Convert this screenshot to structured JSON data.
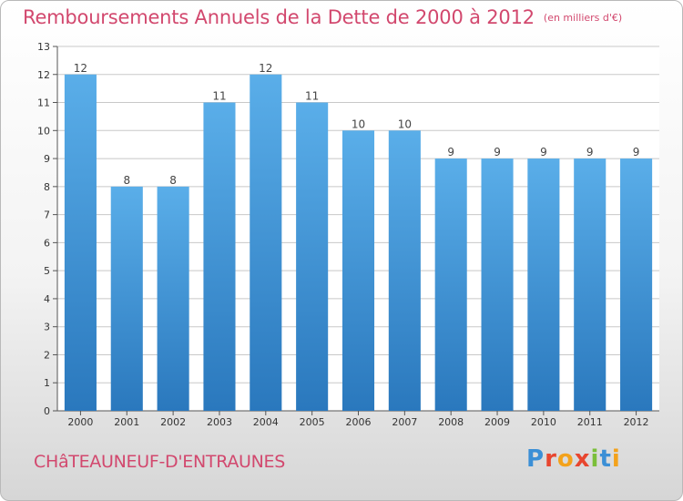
{
  "header": {
    "title": "Remboursements Annuels de la Dette de 2000 à 2012",
    "unit": "(en milliers d'€)"
  },
  "footer": {
    "place": "CHâTEAUNEUF-D'ENTRAUNES",
    "logo": "Proxiti"
  },
  "colors": {
    "bar_top": "#5aaee9",
    "bar_bottom": "#2a78bd",
    "title": "#d2486e",
    "grid": "#c8c8c8"
  },
  "chart_data": {
    "type": "bar",
    "categories": [
      "2000",
      "2001",
      "2002",
      "2003",
      "2004",
      "2005",
      "2006",
      "2007",
      "2008",
      "2009",
      "2010",
      "2011",
      "2012"
    ],
    "values": [
      12,
      8,
      8,
      11,
      12,
      11,
      10,
      10,
      9,
      9,
      9,
      9,
      9
    ],
    "title": "Remboursements Annuels de la Dette de 2000 à 2012",
    "ylim": [
      0,
      13
    ],
    "yticks": [
      0,
      1,
      2,
      3,
      4,
      5,
      6,
      7,
      8,
      9,
      10,
      11,
      12,
      13
    ],
    "grid": true,
    "data_labels": true
  }
}
